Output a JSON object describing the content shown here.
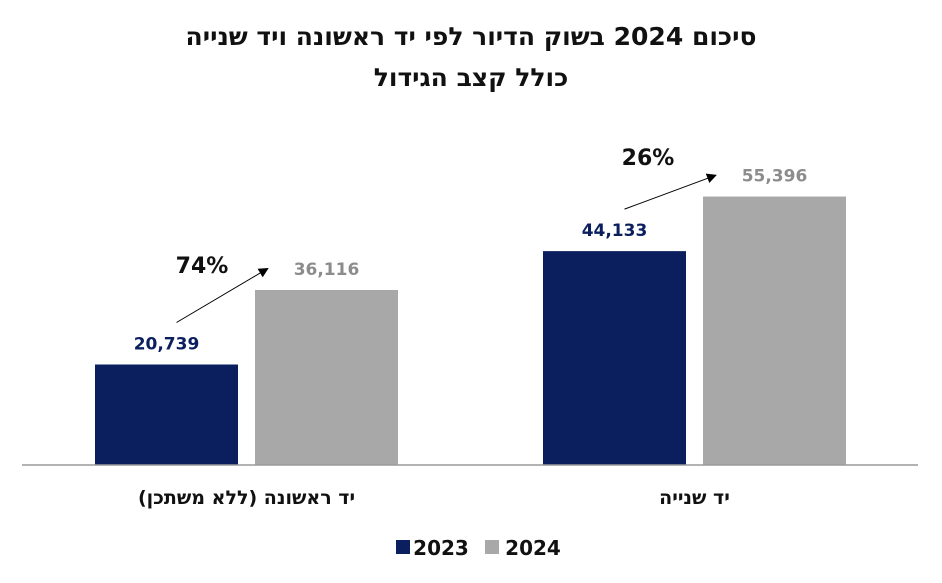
{
  "chart_data": {
    "type": "bar",
    "title": "סיכום 2024 בשוק הדיור לפי יד ראשונה ויד שנייה",
    "subtitle": "כולל קצב הגידול",
    "categories": [
      "יד ראשונה (ללא משתכן)",
      "יד שנייה"
    ],
    "series": [
      {
        "name": "2023",
        "values": [
          20739,
          44133
        ],
        "labels": [
          "20,739",
          "44,133"
        ],
        "color": "#0b1f5e",
        "label_color": "#0b1f5e"
      },
      {
        "name": "2024",
        "values": [
          36116,
          55396
        ],
        "labels": [
          "36,116",
          "55,396"
        ],
        "color": "#a8a8a8",
        "label_color": "#8c8c8c"
      }
    ],
    "growth_labels": [
      "74%",
      "26%"
    ],
    "ylim": [
      0,
      65000
    ],
    "grid": false,
    "legend_position": "bottom"
  }
}
